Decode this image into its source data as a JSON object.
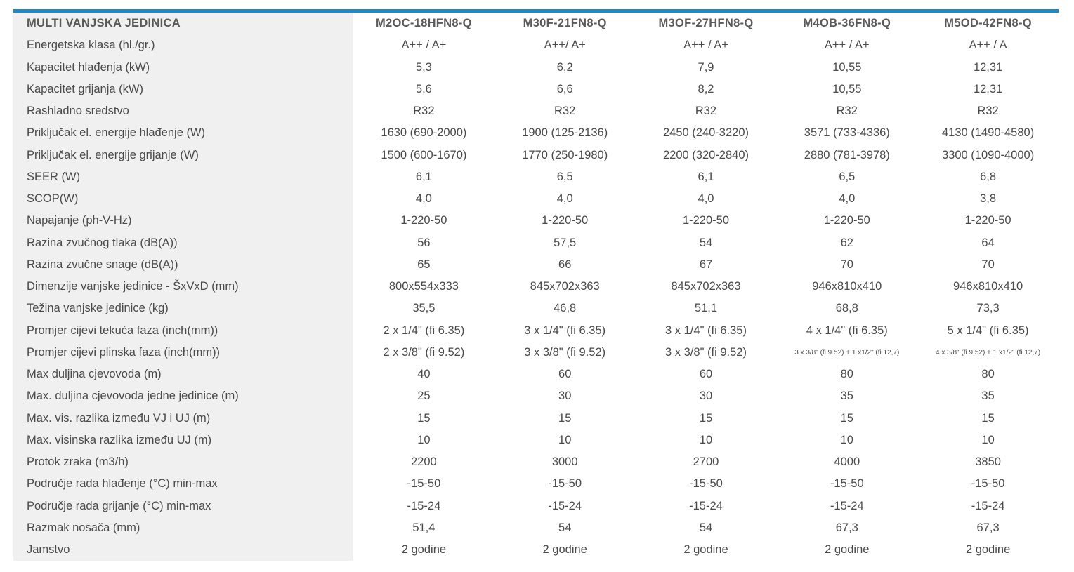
{
  "colors": {
    "accent_bar": "#1f88c9",
    "label_column_bg": "#f0f0f0",
    "text": "#4a4a4a"
  },
  "table": {
    "header": {
      "label": "MULTI VANJSKA JEDINICA",
      "models": [
        "M2OC-18HFN8-Q",
        "M30F-21FN8-Q",
        "M3OF-27HFN8-Q",
        "M4OB-36FN8-Q",
        "M5OD-42FN8-Q"
      ]
    },
    "rows": [
      {
        "label": "Energetska klasa (hl./gr.)",
        "values": [
          "A++ / A+",
          "A++/ A+",
          "A++ / A+",
          "A++ / A+",
          "A++ / A"
        ]
      },
      {
        "label": "Kapacitet hlađenja (kW)",
        "values": [
          "5,3",
          "6,2",
          "7,9",
          "10,55",
          "12,31"
        ]
      },
      {
        "label": "Kapacitet grijanja (kW)",
        "values": [
          "5,6",
          "6,6",
          "8,2",
          "10,55",
          "12,31"
        ]
      },
      {
        "label": "Rashladno sredstvo",
        "values": [
          "R32",
          "R32",
          "R32",
          "R32",
          "R32"
        ]
      },
      {
        "label": "Priključak el. energije hlađenje (W)",
        "values": [
          "1630 (690-2000)",
          "1900 (125-2136)",
          "2450 (240-3220)",
          "3571 (733-4336)",
          "4130 (1490-4580)"
        ]
      },
      {
        "label": "Priključak el. energije grijanje (W)",
        "values": [
          "1500 (600-1670)",
          "1770 (250-1980)",
          "2200 (320-2840)",
          "2880 (781-3978)",
          "3300 (1090-4000)"
        ]
      },
      {
        "label": "SEER (W)",
        "values": [
          "6,1",
          "6,5",
          "6,1",
          "6,5",
          "6,8"
        ]
      },
      {
        "label": "SCOP(W)",
        "values": [
          "4,0",
          "4,0",
          "4,0",
          "4,0",
          "3,8"
        ]
      },
      {
        "label": "Napajanje (ph-V-Hz)",
        "values": [
          "1-220-50",
          "1-220-50",
          "1-220-50",
          "1-220-50",
          "1-220-50"
        ]
      },
      {
        "label": "Razina zvučnog tlaka (dB(A))",
        "values": [
          "56",
          "57,5",
          "54",
          "62",
          "64"
        ]
      },
      {
        "label": "Razina zvučne snage (dB(A))",
        "values": [
          "65",
          "66",
          "67",
          "70",
          "70"
        ]
      },
      {
        "label": "Dimenzije vanjske jedinice - ŠxVxD (mm)",
        "values": [
          "800x554x333",
          "845x702x363",
          "845x702x363",
          "946x810x410",
          "946x810x410"
        ]
      },
      {
        "label": "Težina vanjske jedinice (kg)",
        "values": [
          "35,5",
          "46,8",
          "51,1",
          "68,8",
          "73,3"
        ]
      },
      {
        "label": "Promjer cijevi tekuća faza (inch(mm))",
        "values": [
          "2 x 1/4\" (fi 6.35)",
          "3 x 1/4\" (fi 6.35)",
          "3 x 1/4\" (fi 6.35)",
          "4 x 1/4\" (fi 6.35)",
          "5 x 1/4\" (fi 6.35)"
        ]
      },
      {
        "label": "Promjer cijevi plinska faza (inch(mm))",
        "values": [
          "2 x 3/8\" (fi 9.52)",
          "3 x 3/8\" (fi 9.52)",
          "3 x 3/8\" (fi 9.52)",
          "3 x 3/8\" (fi 9.52) + 1 x1/2\" (fi 12,7)",
          "4 x 3/8\" (fi 9.52) + 1 x1/2\" (fi 12,7)"
        ]
      },
      {
        "label": "Max duljina cjevovoda (m)",
        "values": [
          "40",
          "60",
          "60",
          "80",
          "80"
        ]
      },
      {
        "label": "Max. duljina cjevovoda jedne jedinice (m)",
        "values": [
          "25",
          "30",
          "30",
          "35",
          "35"
        ]
      },
      {
        "label": "Max. vis. razlika između VJ i UJ  (m)",
        "values": [
          "15",
          "15",
          "15",
          "15",
          "15"
        ]
      },
      {
        "label": "Max. visinska razlika između UJ (m)",
        "values": [
          "10",
          "10",
          "10",
          "10",
          "10"
        ]
      },
      {
        "label": "Protok zraka (m3/h)",
        "values": [
          "2200",
          "3000",
          "2700",
          "4000",
          "3850"
        ]
      },
      {
        "label": "Područje rada hlađenje (°C) min-max",
        "values": [
          "-15-50",
          "-15-50",
          "-15-50",
          "-15-50",
          "-15-50"
        ]
      },
      {
        "label": "Područje rada grijanje (°C) min-max",
        "values": [
          "-15-24",
          "-15-24",
          "-15-24",
          "-15-24",
          "-15-24"
        ]
      },
      {
        "label": "Razmak nosača (mm)",
        "values": [
          "51,4",
          "54",
          "54",
          "67,3",
          "67,3"
        ]
      },
      {
        "label": "Jamstvo",
        "values": [
          "2 godine",
          "2 godine",
          "2 godine",
          "2 godine",
          "2 godine"
        ]
      }
    ]
  }
}
